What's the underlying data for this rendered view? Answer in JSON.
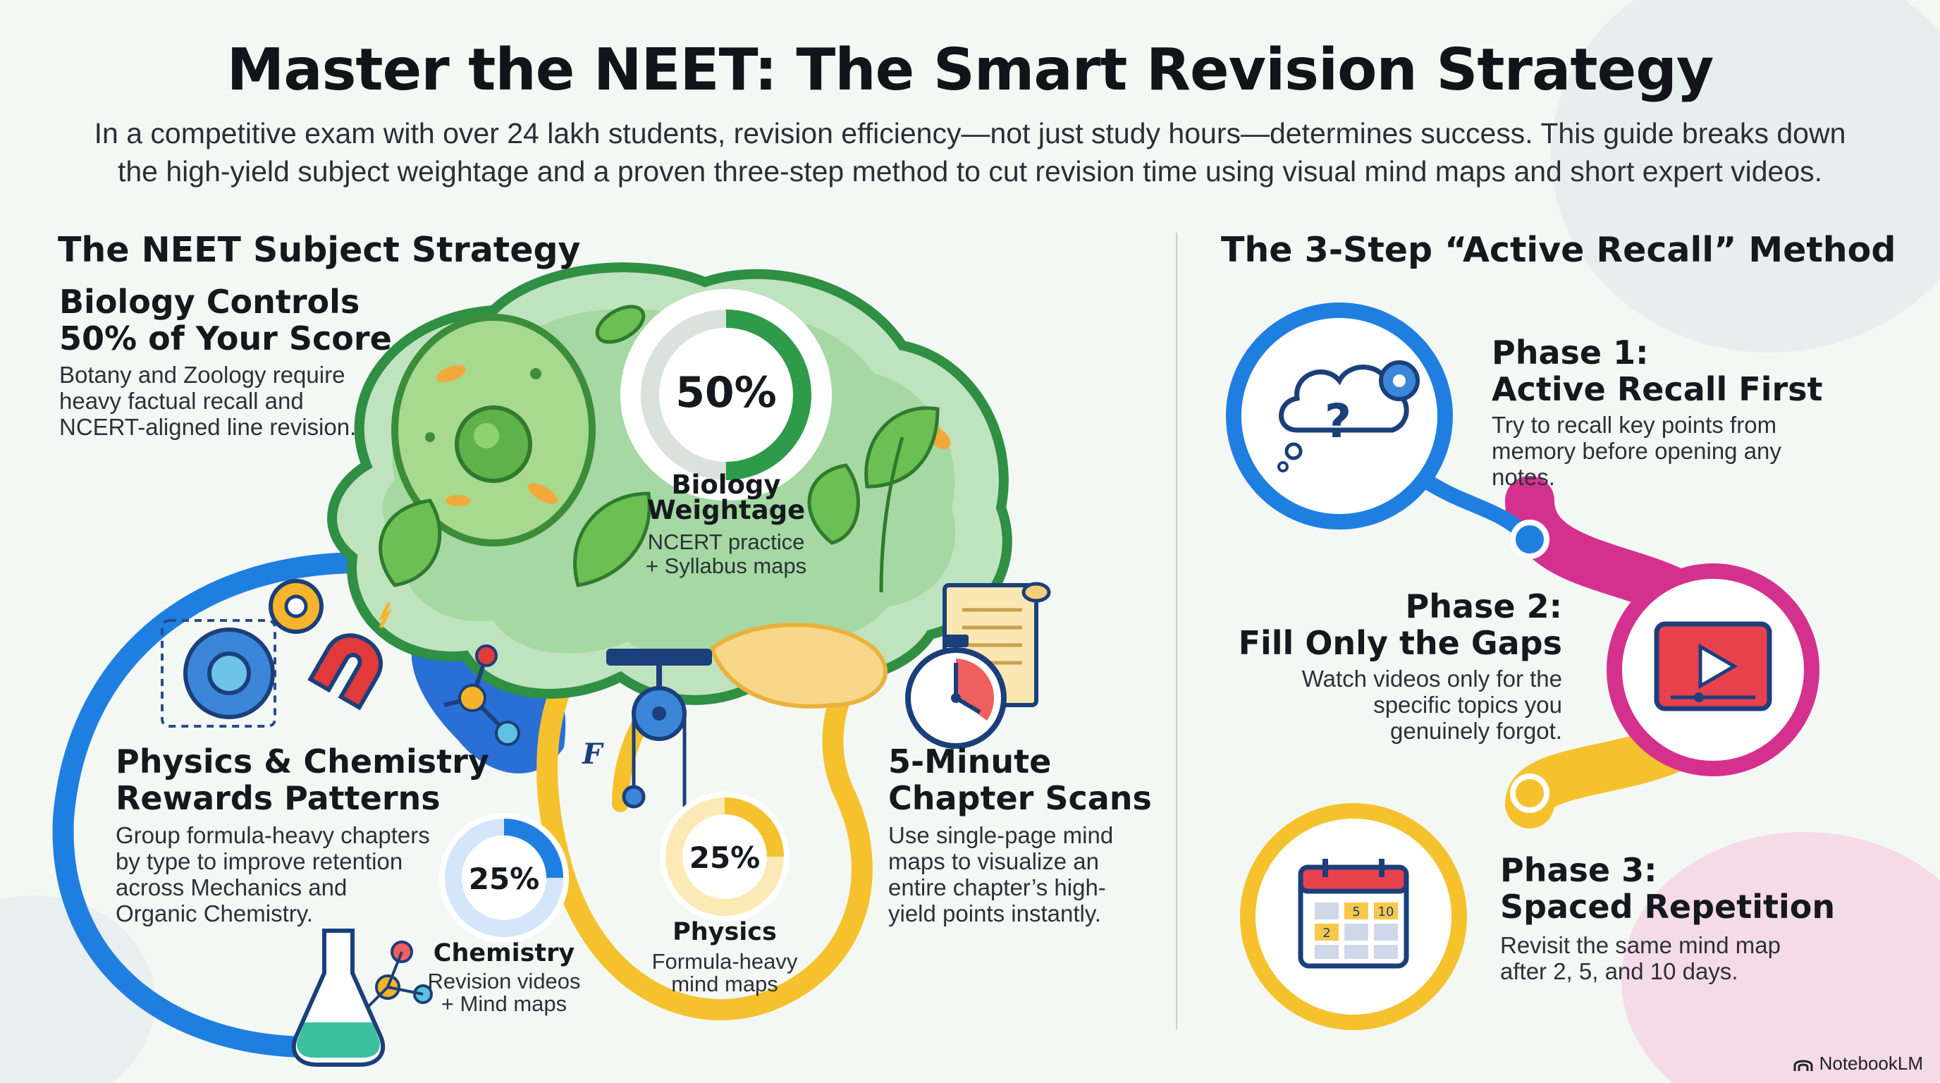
{
  "title": "Master the NEET: The Smart Revision Strategy",
  "subtitle_line1": "In a competitive exam with over 24 lakh students, revision efficiency—not just study hours—determines success. This guide breaks down",
  "subtitle_line2": "the high-yield subject weightage and a proven three-step method to cut revision time using visual mind maps and short expert videos.",
  "left_section": {
    "heading": "The NEET Subject Strategy",
    "biology": {
      "title_line1": "Biology Controls",
      "title_line2": "50% of Your Score",
      "body_line1": "Botany and Zoology require",
      "body_line2": "heavy factual recall and",
      "body_line3": "NCERT-aligned line revision.",
      "percent": "50%",
      "percent_value": 50,
      "label_line1": "Biology",
      "label_line2": "Weightage",
      "sub_line1": "NCERT practice",
      "sub_line2": "+ Syllabus maps"
    },
    "physics_chem": {
      "title_line1": "Physics & Chemistry",
      "title_line2": "Rewards Patterns",
      "body_line1": "Group formula-heavy chapters",
      "body_line2": "by type to improve retention",
      "body_line3": "across Mechanics and",
      "body_line4": "Organic Chemistry."
    },
    "chemistry": {
      "percent": "25%",
      "percent_value": 25,
      "label": "Chemistry",
      "sub_line1": "Revision videos",
      "sub_line2": "+ Mind maps"
    },
    "physics": {
      "percent": "25%",
      "percent_value": 25,
      "label": "Physics",
      "sub_line1": "Formula-heavy",
      "sub_line2": "mind maps",
      "force_symbol": "F"
    },
    "scans": {
      "title_line1": "5-Minute",
      "title_line2": "Chapter Scans",
      "body_line1": "Use single-page mind",
      "body_line2": "maps to visualize an",
      "body_line3": "entire chapter’s high-",
      "body_line4": "yield points instantly."
    }
  },
  "right_section": {
    "heading": "The 3-Step “Active Recall” Method",
    "phase1": {
      "title_line1": "Phase 1:",
      "title_line2": "Active Recall First",
      "body_line1": "Try to recall key points from",
      "body_line2": "memory before opening any",
      "body_line3": "notes.",
      "icon": "thought-cloud-question-gear-icon",
      "question_mark": "?"
    },
    "phase2": {
      "title_line1": "Phase 2:",
      "title_line2": "Fill Only the Gaps",
      "body_line1": "Watch videos only for the",
      "body_line2": "specific topics you",
      "body_line3": "genuinely forgot.",
      "icon": "video-play-icon"
    },
    "phase3": {
      "title_line1": "Phase 3:",
      "title_line2": "Spaced Repetition",
      "body_line1": "Revisit the same mind map",
      "body_line2": "after 2, 5, and 10 days.",
      "icon": "calendar-icon",
      "cal_days": [
        "5",
        "10",
        "2"
      ]
    }
  },
  "footer": {
    "brand": "NotebookLM"
  },
  "colors": {
    "blue": "#1f7fe0",
    "green": "#2e9b4a",
    "yellow": "#f5c22e",
    "magenta": "#d4318f",
    "light_green": "#cfe9c6"
  }
}
